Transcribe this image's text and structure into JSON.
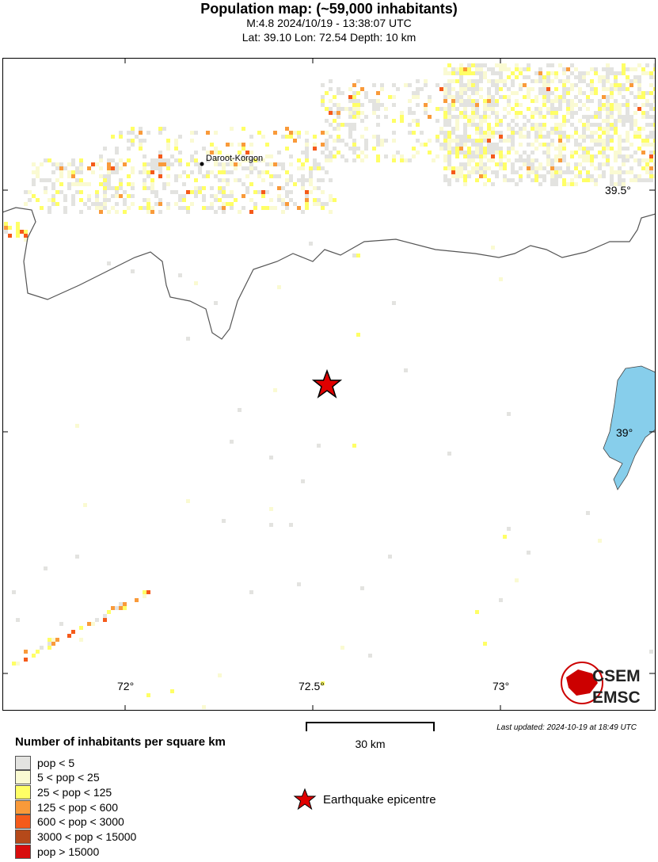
{
  "header": {
    "title": "Population map: (~59,000 inhabitants)",
    "event": "M:4.8 2024/10/19 - 13:38:07 UTC",
    "location": "Lat: 39.10 Lon: 72.54 Depth: 10 km"
  },
  "map": {
    "place_label": "Daroot-Korgon",
    "lat_ticks": [
      "39.5°",
      "39°"
    ],
    "lon_ticks": [
      "72°",
      "72.5°",
      "73°"
    ],
    "lake_color": "#87ceeb",
    "epicentre_color": "#e00000",
    "logo": "CSEM EMSC"
  },
  "scale": {
    "label": "30 km"
  },
  "updated": "Last updated: 2024-10-19 at 18:49 UTC",
  "legend": {
    "title": "Number of inhabitants per square km",
    "items": [
      {
        "label": "pop < 5",
        "color": "#e3e3e0"
      },
      {
        "label": "5 < pop < 25",
        "color": "#fafad2"
      },
      {
        "label": "25 < pop < 125",
        "color": "#ffff66"
      },
      {
        "label": "125 < pop < 600",
        "color": "#f99a3a"
      },
      {
        "label": "600 < pop < 3000",
        "color": "#f55a1a"
      },
      {
        "label": "3000 < pop < 15000",
        "color": "#b5491a"
      },
      {
        "label": "pop > 15000",
        "color": "#d80c0c"
      }
    ],
    "epicentre": "Earthquake epicentre"
  }
}
